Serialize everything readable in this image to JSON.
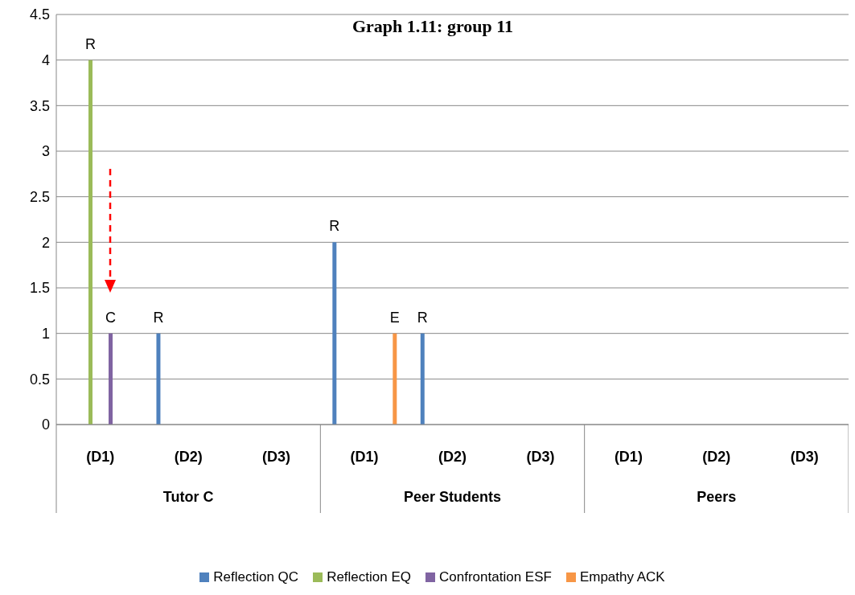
{
  "chart_data": {
    "type": "bar",
    "title": "Graph 1.11: group 11",
    "categories": [
      "(D1)",
      "(D2)",
      "(D3)",
      "(D1)",
      "(D2)",
      "(D3)",
      "(D1)",
      "(D2)",
      "(D3)"
    ],
    "annotations": [
      "Tutor C",
      "Peer Students",
      "Peers"
    ],
    "series": [
      {
        "name": "Reflection QC",
        "color": "#4f81bd",
        "values": [
          null,
          1,
          null,
          2,
          1,
          null,
          null,
          null,
          null
        ],
        "value_labels": [
          null,
          "R",
          null,
          "R",
          "R",
          null,
          null,
          null,
          null
        ]
      },
      {
        "name": "Reflection EQ",
        "color": "#9bbb59",
        "values": [
          4,
          null,
          null,
          null,
          null,
          null,
          null,
          null,
          null
        ],
        "value_labels": [
          "R",
          null,
          null,
          null,
          null,
          null,
          null,
          null,
          null
        ]
      },
      {
        "name": "Confrontation ESF",
        "color": "#8064a2",
        "values": [
          1,
          null,
          null,
          null,
          null,
          null,
          null,
          null,
          null
        ],
        "value_labels": [
          "C",
          null,
          null,
          null,
          null,
          null,
          null,
          null,
          null
        ]
      },
      {
        "name": "Empathy ACK",
        "color": "#f79646",
        "values": [
          null,
          null,
          null,
          1,
          null,
          null,
          null,
          null,
          null
        ],
        "value_labels": [
          null,
          null,
          null,
          "E",
          null,
          null,
          null,
          null,
          null
        ]
      }
    ],
    "ylim": [
      0,
      4.5
    ],
    "yticks": [
      0,
      0.5,
      1,
      1.5,
      2,
      2.5,
      3,
      3.5,
      4,
      4.5
    ],
    "grid": "y",
    "legend": "bottom"
  }
}
